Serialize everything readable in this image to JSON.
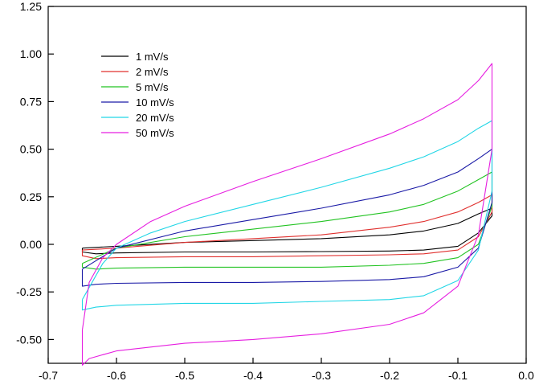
{
  "chart_data": {
    "type": "line",
    "title": "",
    "xlabel": "",
    "ylabel": "",
    "xlim": [
      -0.7,
      0.0
    ],
    "ylim": [
      -0.625,
      1.25
    ],
    "xticks": [
      -0.7,
      -0.6,
      -0.5,
      -0.4,
      -0.3,
      -0.2,
      -0.1,
      0.0
    ],
    "xtick_labels": [
      "-0.7",
      "-0.6",
      "-0.5",
      "-0.4",
      "-0.3",
      "-0.2",
      "-0.1",
      "0.0"
    ],
    "yticks": [
      -0.5,
      -0.25,
      0.0,
      0.25,
      0.5,
      0.75,
      1.0,
      1.25
    ],
    "ytick_labels": [
      "-0.50",
      "-0.25",
      "0.00",
      "0.25",
      "0.50",
      "0.75",
      "1.00",
      "1.25"
    ],
    "grid": false,
    "legend_position": "top-left",
    "series": [
      {
        "name": "1 mV/s",
        "color": "#000000",
        "x": [
          -0.65,
          -0.6,
          -0.5,
          -0.4,
          -0.3,
          -0.2,
          -0.15,
          -0.1,
          -0.07,
          -0.05,
          -0.05,
          -0.07,
          -0.1,
          -0.15,
          -0.2,
          -0.3,
          -0.4,
          -0.5,
          -0.6,
          -0.63,
          -0.65,
          -0.65
        ],
        "y": [
          -0.02,
          -0.01,
          0.01,
          0.02,
          0.03,
          0.05,
          0.07,
          0.11,
          0.16,
          0.19,
          0.15,
          0.06,
          -0.01,
          -0.03,
          -0.035,
          -0.038,
          -0.04,
          -0.04,
          -0.045,
          -0.05,
          -0.04,
          -0.02
        ]
      },
      {
        "name": "2 mV/s",
        "color": "#e0302e",
        "x": [
          -0.65,
          -0.6,
          -0.5,
          -0.4,
          -0.3,
          -0.2,
          -0.15,
          -0.1,
          -0.07,
          -0.05,
          -0.05,
          -0.07,
          -0.1,
          -0.15,
          -0.2,
          -0.3,
          -0.4,
          -0.5,
          -0.6,
          -0.63,
          -0.65,
          -0.65
        ],
        "y": [
          -0.03,
          -0.02,
          0.01,
          0.03,
          0.05,
          0.09,
          0.12,
          0.17,
          0.22,
          0.26,
          0.17,
          0.04,
          -0.03,
          -0.05,
          -0.055,
          -0.06,
          -0.065,
          -0.065,
          -0.07,
          -0.075,
          -0.06,
          -0.03
        ]
      },
      {
        "name": "5 mV/s",
        "color": "#22c322",
        "x": [
          -0.65,
          -0.6,
          -0.5,
          -0.4,
          -0.3,
          -0.2,
          -0.15,
          -0.1,
          -0.07,
          -0.05,
          -0.05,
          -0.07,
          -0.1,
          -0.15,
          -0.2,
          -0.3,
          -0.4,
          -0.5,
          -0.6,
          -0.63,
          -0.65,
          -0.65
        ],
        "y": [
          -0.1,
          -0.02,
          0.04,
          0.08,
          0.12,
          0.17,
          0.21,
          0.28,
          0.34,
          0.38,
          0.2,
          0.0,
          -0.07,
          -0.1,
          -0.11,
          -0.12,
          -0.12,
          -0.12,
          -0.125,
          -0.13,
          -0.12,
          -0.1
        ]
      },
      {
        "name": "10 mV/s",
        "color": "#1a1aa6",
        "x": [
          -0.65,
          -0.6,
          -0.5,
          -0.4,
          -0.3,
          -0.2,
          -0.15,
          -0.1,
          -0.07,
          -0.05,
          -0.05,
          -0.07,
          -0.1,
          -0.15,
          -0.2,
          -0.3,
          -0.4,
          -0.5,
          -0.6,
          -0.63,
          -0.65,
          -0.65
        ],
        "y": [
          -0.13,
          -0.02,
          0.07,
          0.13,
          0.19,
          0.26,
          0.31,
          0.38,
          0.45,
          0.5,
          0.22,
          -0.02,
          -0.12,
          -0.17,
          -0.185,
          -0.195,
          -0.2,
          -0.2,
          -0.205,
          -0.21,
          -0.22,
          -0.13
        ]
      },
      {
        "name": "20 mV/s",
        "color": "#22d6e6",
        "x": [
          -0.65,
          -0.62,
          -0.6,
          -0.55,
          -0.5,
          -0.4,
          -0.3,
          -0.2,
          -0.15,
          -0.1,
          -0.07,
          -0.05,
          -0.05,
          -0.07,
          -0.1,
          -0.15,
          -0.2,
          -0.3,
          -0.4,
          -0.5,
          -0.6,
          -0.63,
          -0.65,
          -0.65
        ],
        "y": [
          -0.29,
          -0.1,
          -0.02,
          0.06,
          0.12,
          0.21,
          0.3,
          0.4,
          0.46,
          0.54,
          0.61,
          0.65,
          0.28,
          -0.03,
          -0.19,
          -0.27,
          -0.29,
          -0.3,
          -0.31,
          -0.31,
          -0.32,
          -0.33,
          -0.345,
          -0.29
        ]
      },
      {
        "name": "50 mV/s",
        "color": "#e61ee0",
        "x": [
          -0.65,
          -0.64,
          -0.62,
          -0.6,
          -0.55,
          -0.5,
          -0.4,
          -0.3,
          -0.2,
          -0.15,
          -0.1,
          -0.07,
          -0.05,
          -0.05,
          -0.07,
          -0.1,
          -0.15,
          -0.2,
          -0.3,
          -0.4,
          -0.5,
          -0.6,
          -0.64,
          -0.65,
          -0.65
        ],
        "y": [
          -0.45,
          -0.2,
          -0.07,
          0.0,
          0.12,
          0.2,
          0.33,
          0.45,
          0.58,
          0.66,
          0.76,
          0.86,
          0.95,
          0.5,
          0.05,
          -0.22,
          -0.36,
          -0.42,
          -0.47,
          -0.5,
          -0.52,
          -0.56,
          -0.6,
          -0.635,
          -0.45
        ]
      }
    ]
  }
}
